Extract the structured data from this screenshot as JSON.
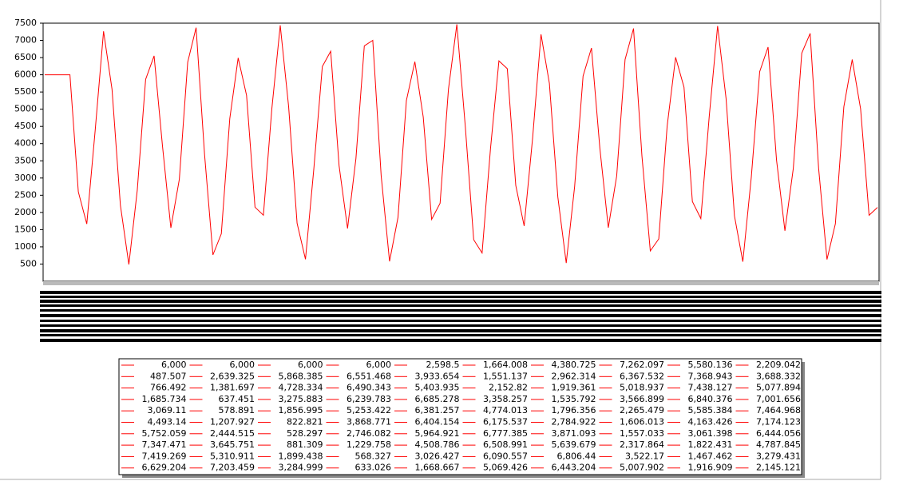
{
  "chart_data": {
    "type": "line",
    "series": [
      {
        "color": "#ff0000",
        "values": [
          6000,
          6000,
          6000,
          6000,
          2598.5,
          1664.008,
          4380.725,
          7262.097,
          5580.136,
          2209.042,
          487.507,
          2639.325,
          5868.385,
          6551.468,
          3933.654,
          1551.137,
          2962.314,
          6367.532,
          7368.943,
          3688.332,
          766.492,
          1381.697,
          4728.334,
          6490.343,
          5403.935,
          2152.82,
          1919.361,
          5018.937,
          7438.127,
          5077.894,
          1685.734,
          637.451,
          3275.883,
          6239.783,
          6685.278,
          3358.257,
          1535.792,
          3566.899,
          6840.376,
          7001.656,
          3069.11,
          578.891,
          1856.995,
          5253.422,
          6381.257,
          4774.013,
          1796.356,
          2265.479,
          5585.384,
          7464.968,
          4493.14,
          1207.927,
          822.821,
          3868.771,
          6404.154,
          6175.537,
          2784.922,
          1606.013,
          4163.426,
          7174.123,
          5752.059,
          2444.515,
          528.297,
          2746.082,
          5964.921,
          6777.385,
          3871.093,
          1557.033,
          3061.398,
          6444.056,
          7347.471,
          3645.751,
          881.309,
          1229.758,
          4508.786,
          6508.991,
          5639.679,
          2317.864,
          1822.431,
          4787.845,
          7419.269,
          5310.911,
          1899.438,
          568.327,
          3026.427,
          6090.557,
          6806.44,
          3522.17,
          1467.462,
          3279.431,
          6629.204,
          7203.459,
          3284.999,
          633.026,
          1668.667,
          5069.426,
          6443.204,
          5007.902,
          1916.909,
          2145.121
        ],
        "value_labels": [
          "6,000",
          "6,000",
          "6,000",
          "6,000",
          "2,598.5",
          "1,664.008",
          "4,380.725",
          "7,262.097",
          "5,580.136",
          "2,209.042",
          "487.507",
          "2,639.325",
          "5,868.385",
          "6,551.468",
          "3,933.654",
          "1,551.137",
          "2,962.314",
          "6,367.532",
          "7,368.943",
          "3,688.332",
          "766.492",
          "1,381.697",
          "4,728.334",
          "6,490.343",
          "5,403.935",
          "2,152.82",
          "1,919.361",
          "5,018.937",
          "7,438.127",
          "5,077.894",
          "1,685.734",
          "637.451",
          "3,275.883",
          "6,239.783",
          "6,685.278",
          "3,358.257",
          "1,535.792",
          "3,566.899",
          "6,840.376",
          "7,001.656",
          "3,069.11",
          "578.891",
          "1,856.995",
          "5,253.422",
          "6,381.257",
          "4,774.013",
          "1,796.356",
          "2,265.479",
          "5,585.384",
          "7,464.968",
          "4,493.14",
          "1,207.927",
          "822.821",
          "3,868.771",
          "6,404.154",
          "6,175.537",
          "2,784.922",
          "1,606.013",
          "4,163.426",
          "7,174.123",
          "5,752.059",
          "2,444.515",
          "528.297",
          "2,746.082",
          "5,964.921",
          "6,777.385",
          "3,871.093",
          "1,557.033",
          "3,061.398",
          "6,444.056",
          "7,347.471",
          "3,645.751",
          "881.309",
          "1,229.758",
          "4,508.786",
          "6,508.991",
          "5,639.679",
          "2,317.864",
          "1,822.431",
          "4,787.845",
          "7,419.269",
          "5,310.911",
          "1,899.438",
          "568.327",
          "3,026.427",
          "6,090.557",
          "6,806.44",
          "3,522.17",
          "1,467.462",
          "3,279.431",
          "6,629.204",
          "7,203.459",
          "3,284.999",
          "633.026",
          "1,668.667",
          "5,069.426",
          "6,443.204",
          "5,007.902",
          "1,916.909",
          "2,145.121"
        ]
      }
    ],
    "ylim": [
      0,
      7500
    ],
    "yticks": [
      500,
      1000,
      1500,
      2000,
      2500,
      3000,
      3500,
      4000,
      4500,
      5000,
      5500,
      6000,
      6500,
      7000,
      7500
    ]
  }
}
